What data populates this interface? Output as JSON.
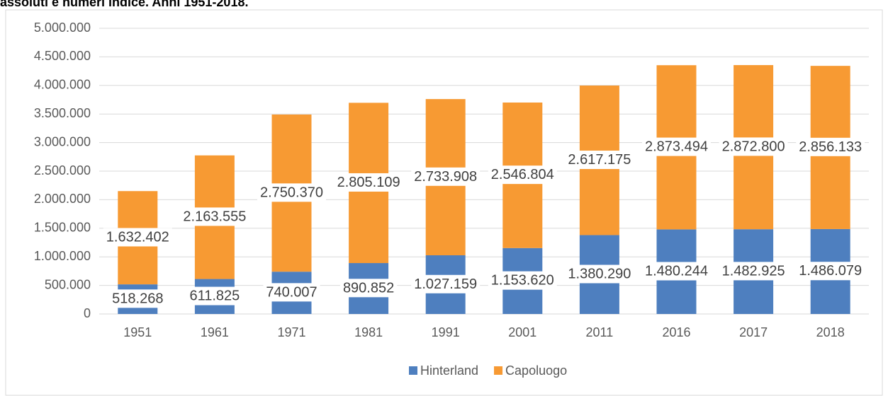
{
  "chart_data": {
    "type": "stacked-bar",
    "title": "assoluti e numeri indice. Anni 1951-2018.",
    "categories": [
      "1951",
      "1961",
      "1971",
      "1981",
      "1991",
      "2001",
      "2011",
      "2016",
      "2017",
      "2018"
    ],
    "series": [
      {
        "name": "Hinterland",
        "color": "#4e7fbf",
        "values": [
          518268,
          611825,
          740007,
          890852,
          1027159,
          1153620,
          1380290,
          1480244,
          1482925,
          1486079
        ],
        "value_labels": [
          "518.268",
          "611.825",
          "740.007",
          "890.852",
          "1.027.159",
          "1.153.620",
          "1.380.290",
          "1.480.244",
          "1.482.925",
          "1.486.079"
        ]
      },
      {
        "name": "Capoluogo",
        "color": "#f79a33",
        "values": [
          1632402,
          2163555,
          2750370,
          2805109,
          2733908,
          2546804,
          2617175,
          2873494,
          2872800,
          2856133
        ],
        "value_labels": [
          "1.632.402",
          "2.163.555",
          "2.750.370",
          "2.805.109",
          "2.733.908",
          "2.546.804",
          "2.617.175",
          "2.873.494",
          "2.872.800",
          "2.856.133"
        ]
      }
    ],
    "ylim": [
      0,
      5000000
    ],
    "yticks": [
      0,
      {
        "value": 500000,
        "label": "500.000"
      },
      {
        "value": 1000000,
        "label": "1.000.000"
      },
      {
        "value": 1500000,
        "label": "1.500.000"
      },
      {
        "value": 2000000,
        "label": "2.000.000"
      },
      {
        "value": 2500000,
        "label": "2.500.000"
      },
      {
        "value": 3000000,
        "label": "3.000.000"
      },
      {
        "value": 3500000,
        "label": "3.500.000"
      },
      {
        "value": 4000000,
        "label": "4.000.000"
      },
      {
        "value": 4500000,
        "label": "4.500.000"
      },
      {
        "value": 5000000,
        "label": "5.000.000"
      }
    ],
    "grid": true,
    "legend": "bottom"
  }
}
